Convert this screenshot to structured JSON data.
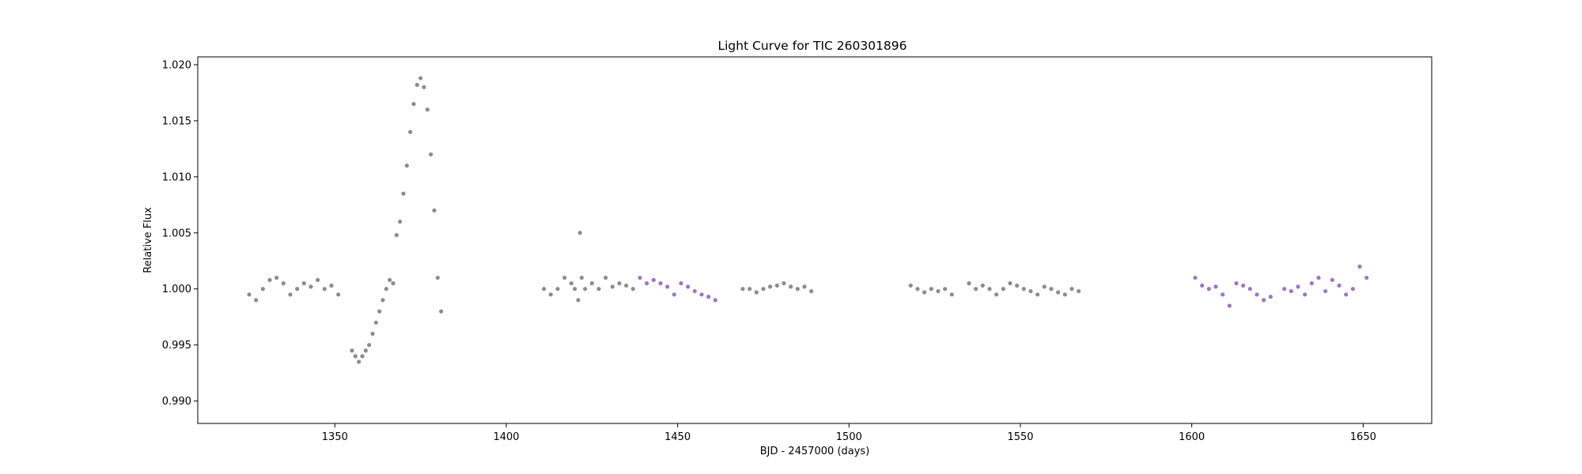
{
  "chart_data": {
    "type": "scatter",
    "title": "Light Curve for TIC 260301896",
    "xlabel": "BJD - 2457000 (days)",
    "ylabel": "Relative Flux",
    "xlim": [
      1310,
      1670
    ],
    "ylim": [
      0.988,
      1.0207
    ],
    "xticks": [
      1350,
      1400,
      1450,
      1500,
      1550,
      1600,
      1650
    ],
    "xtick_labels": [
      "1350",
      "1400",
      "1450",
      "1500",
      "1550",
      "1600",
      "1650"
    ],
    "yticks": [
      0.99,
      0.995,
      1.0,
      1.005,
      1.01,
      1.015,
      1.02
    ],
    "ytick_labels": [
      "0.990",
      "0.995",
      "1.000",
      "1.005",
      "1.010",
      "1.015",
      "1.020"
    ],
    "grid": false,
    "colors": {
      "default": "#808080",
      "highlight": "#9467bd"
    },
    "series": [
      {
        "color": "#808080",
        "x": [
          1325,
          1327,
          1329,
          1331,
          1333,
          1335,
          1337,
          1339,
          1341,
          1343,
          1345,
          1347,
          1349,
          1351,
          1355,
          1356,
          1357,
          1358,
          1359,
          1360,
          1361,
          1362,
          1363,
          1364,
          1365,
          1366,
          1367,
          1368,
          1369,
          1370,
          1371,
          1372,
          1373,
          1374,
          1375,
          1376,
          1377,
          1378,
          1379,
          1380,
          1381,
          1411,
          1413,
          1415,
          1417,
          1419,
          1420,
          1421,
          1421.5,
          1422,
          1423,
          1425,
          1427,
          1429,
          1431,
          1433,
          1435,
          1437,
          1469,
          1471,
          1473,
          1475,
          1477,
          1479,
          1481,
          1483,
          1485,
          1487,
          1489,
          1518,
          1520,
          1522,
          1524,
          1526,
          1528,
          1530,
          1535,
          1537,
          1539,
          1541,
          1543,
          1545,
          1547,
          1549,
          1551,
          1553,
          1555,
          1557,
          1559,
          1561,
          1563,
          1565,
          1567
        ],
        "y": [
          0.9995,
          0.999,
          1.0,
          1.0008,
          1.001,
          1.0005,
          0.9995,
          1.0,
          1.0005,
          1.0002,
          1.0008,
          1.0,
          1.0003,
          0.9995,
          0.9945,
          0.994,
          0.9935,
          0.994,
          0.9945,
          0.995,
          0.996,
          0.997,
          0.998,
          0.999,
          1.0,
          1.0008,
          1.0005,
          1.0048,
          1.006,
          1.0085,
          1.011,
          1.014,
          1.0165,
          1.0182,
          1.0188,
          1.018,
          1.016,
          1.012,
          1.007,
          1.001,
          0.998,
          1.0,
          0.9995,
          1.0,
          1.001,
          1.0005,
          1.0,
          0.999,
          1.005,
          1.001,
          1.0,
          1.0005,
          1.0,
          1.001,
          1.0002,
          1.0005,
          1.0003,
          1.0,
          1.0,
          1.0,
          0.9997,
          1.0,
          1.0002,
          1.0003,
          1.0005,
          1.0002,
          1.0,
          1.0002,
          0.9998,
          1.0003,
          1.0,
          0.9997,
          1.0,
          0.9998,
          1.0,
          0.9995,
          1.0005,
          1.0,
          1.0003,
          1.0,
          0.9995,
          1.0,
          1.0005,
          1.0003,
          1.0,
          0.9998,
          0.9995,
          1.0002,
          1.0,
          0.9997,
          0.9995,
          1.0,
          0.9998
        ]
      },
      {
        "color": "#9467bd",
        "x": [
          1439,
          1441,
          1443,
          1445,
          1447,
          1449,
          1451,
          1453,
          1455,
          1457,
          1459,
          1461,
          1601,
          1603,
          1605,
          1607,
          1609,
          1611,
          1613,
          1615,
          1617,
          1619,
          1621,
          1623,
          1627,
          1629,
          1631,
          1633,
          1635,
          1637,
          1639,
          1641,
          1643,
          1645,
          1647,
          1649,
          1651
        ],
        "y": [
          1.001,
          1.0005,
          1.0008,
          1.0005,
          1.0002,
          0.9995,
          1.0005,
          1.0002,
          0.9998,
          0.9995,
          0.9993,
          0.999,
          1.001,
          1.0003,
          1.0,
          1.0002,
          0.9995,
          0.9985,
          1.0005,
          1.0003,
          1.0,
          0.9995,
          0.999,
          0.9993,
          1.0,
          0.9998,
          1.0002,
          0.9995,
          1.0005,
          1.001,
          0.9998,
          1.0008,
          1.0003,
          0.9995,
          1.0,
          1.002,
          1.001
        ]
      }
    ],
    "annotations": []
  }
}
